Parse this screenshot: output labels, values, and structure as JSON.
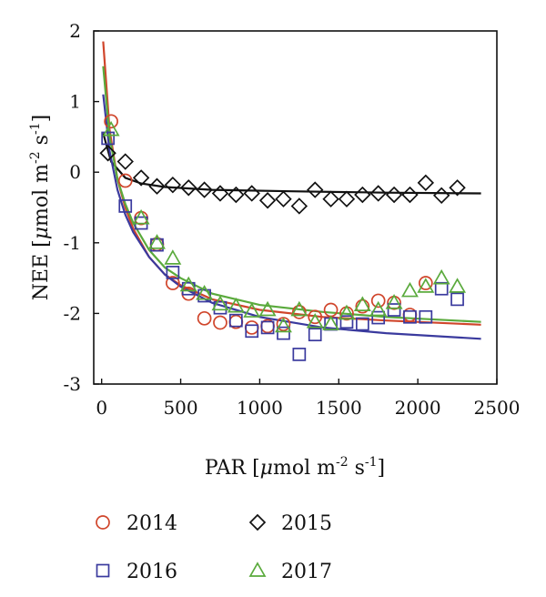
{
  "chart_data": {
    "type": "scatter",
    "xlabel": {
      "prefix": "PAR [",
      "mu": "μ",
      "mid": "mol m",
      "exp1": "-2",
      "s": " s",
      "exp2": "-1",
      "suffix": "]"
    },
    "ylabel": {
      "prefix": "NEE [",
      "mu": "μ",
      "mid": "mol m",
      "exp1": "-2",
      "s": " s",
      "exp2": "-1",
      "suffix": "]"
    },
    "xlim": [
      -50,
      2500
    ],
    "ylim": [
      -3,
      2
    ],
    "xticks": [
      0,
      500,
      1000,
      1500,
      2000,
      2500
    ],
    "yticks": [
      -3,
      -2,
      -1,
      0,
      1,
      2
    ],
    "grid": false,
    "legend_position": "bottom",
    "series": [
      {
        "name": "2014",
        "marker": "circle",
        "color": "#d0452b",
        "points": [
          [
            60,
            0.72
          ],
          [
            150,
            -0.12
          ],
          [
            250,
            -0.65
          ],
          [
            350,
            -1.02
          ],
          [
            450,
            -1.57
          ],
          [
            550,
            -1.72
          ],
          [
            650,
            -2.07
          ],
          [
            750,
            -2.13
          ],
          [
            850,
            -2.12
          ],
          [
            950,
            -2.2
          ],
          [
            1050,
            -2.18
          ],
          [
            1150,
            -2.15
          ],
          [
            1250,
            -1.98
          ],
          [
            1350,
            -2.05
          ],
          [
            1450,
            -1.95
          ],
          [
            1550,
            -2.0
          ],
          [
            1650,
            -1.9
          ],
          [
            1750,
            -1.82
          ],
          [
            1850,
            -1.85
          ],
          [
            1950,
            -2.02
          ],
          [
            2050,
            -1.57
          ]
        ],
        "fit": [
          [
            10,
            1.85
          ],
          [
            50,
            0.6
          ],
          [
            100,
            -0.1
          ],
          [
            150,
            -0.5
          ],
          [
            200,
            -0.8
          ],
          [
            300,
            -1.2
          ],
          [
            400,
            -1.45
          ],
          [
            500,
            -1.6
          ],
          [
            700,
            -1.8
          ],
          [
            1000,
            -1.95
          ],
          [
            1400,
            -2.05
          ],
          [
            1800,
            -2.1
          ],
          [
            2400,
            -2.16
          ]
        ]
      },
      {
        "name": "2015",
        "marker": "diamond",
        "color": "#111111",
        "points": [
          [
            40,
            0.27
          ],
          [
            150,
            0.15
          ],
          [
            250,
            -0.08
          ],
          [
            350,
            -0.2
          ],
          [
            450,
            -0.18
          ],
          [
            550,
            -0.22
          ],
          [
            650,
            -0.25
          ],
          [
            750,
            -0.3
          ],
          [
            850,
            -0.32
          ],
          [
            950,
            -0.3
          ],
          [
            1050,
            -0.4
          ],
          [
            1150,
            -0.38
          ],
          [
            1250,
            -0.48
          ],
          [
            1350,
            -0.25
          ],
          [
            1450,
            -0.38
          ],
          [
            1550,
            -0.38
          ],
          [
            1650,
            -0.32
          ],
          [
            1750,
            -0.3
          ],
          [
            1850,
            -0.32
          ],
          [
            1950,
            -0.32
          ],
          [
            2050,
            -0.15
          ],
          [
            2150,
            -0.33
          ],
          [
            2250,
            -0.22
          ]
        ],
        "fit": [
          [
            10,
            0.55
          ],
          [
            60,
            0.15
          ],
          [
            150,
            -0.08
          ],
          [
            250,
            -0.16
          ],
          [
            400,
            -0.21
          ],
          [
            700,
            -0.25
          ],
          [
            1200,
            -0.27
          ],
          [
            1800,
            -0.29
          ],
          [
            2400,
            -0.3
          ]
        ]
      },
      {
        "name": "2016",
        "marker": "square",
        "color": "#3a3a9e",
        "points": [
          [
            40,
            0.48
          ],
          [
            150,
            -0.48
          ],
          [
            250,
            -0.72
          ],
          [
            350,
            -1.03
          ],
          [
            450,
            -1.42
          ],
          [
            550,
            -1.65
          ],
          [
            650,
            -1.75
          ],
          [
            750,
            -1.92
          ],
          [
            850,
            -2.1
          ],
          [
            950,
            -2.25
          ],
          [
            1050,
            -2.2
          ],
          [
            1150,
            -2.28
          ],
          [
            1250,
            -2.58
          ],
          [
            1350,
            -2.3
          ],
          [
            1450,
            -2.15
          ],
          [
            1550,
            -2.12
          ],
          [
            1650,
            -2.15
          ],
          [
            1750,
            -2.06
          ],
          [
            1850,
            -1.95
          ],
          [
            1950,
            -2.05
          ],
          [
            2050,
            -2.05
          ],
          [
            2150,
            -1.65
          ],
          [
            2250,
            -1.8
          ]
        ],
        "fit": [
          [
            10,
            1.1
          ],
          [
            50,
            0.3
          ],
          [
            100,
            -0.25
          ],
          [
            150,
            -0.6
          ],
          [
            200,
            -0.85
          ],
          [
            300,
            -1.2
          ],
          [
            400,
            -1.45
          ],
          [
            500,
            -1.62
          ],
          [
            700,
            -1.85
          ],
          [
            1000,
            -2.05
          ],
          [
            1400,
            -2.2
          ],
          [
            1800,
            -2.28
          ],
          [
            2400,
            -2.36
          ]
        ]
      },
      {
        "name": "2017",
        "marker": "triangle",
        "color": "#5aaa3c",
        "points": [
          [
            60,
            0.6
          ],
          [
            250,
            -0.65
          ],
          [
            350,
            -1.0
          ],
          [
            450,
            -1.22
          ],
          [
            550,
            -1.6
          ],
          [
            650,
            -1.72
          ],
          [
            750,
            -1.87
          ],
          [
            850,
            -1.9
          ],
          [
            950,
            -1.97
          ],
          [
            1050,
            -1.95
          ],
          [
            1150,
            -2.18
          ],
          [
            1250,
            -1.95
          ],
          [
            1350,
            -2.12
          ],
          [
            1450,
            -2.15
          ],
          [
            1550,
            -2.0
          ],
          [
            1650,
            -1.88
          ],
          [
            1750,
            -1.95
          ],
          [
            1850,
            -1.85
          ],
          [
            1950,
            -1.68
          ],
          [
            2050,
            -1.62
          ],
          [
            2150,
            -1.5
          ],
          [
            2250,
            -1.62
          ]
        ],
        "fit": [
          [
            10,
            1.5
          ],
          [
            50,
            0.5
          ],
          [
            100,
            -0.1
          ],
          [
            150,
            -0.45
          ],
          [
            200,
            -0.72
          ],
          [
            300,
            -1.1
          ],
          [
            400,
            -1.35
          ],
          [
            500,
            -1.5
          ],
          [
            700,
            -1.72
          ],
          [
            1000,
            -1.88
          ],
          [
            1400,
            -1.98
          ],
          [
            1800,
            -2.05
          ],
          [
            2400,
            -2.12
          ]
        ]
      }
    ]
  }
}
